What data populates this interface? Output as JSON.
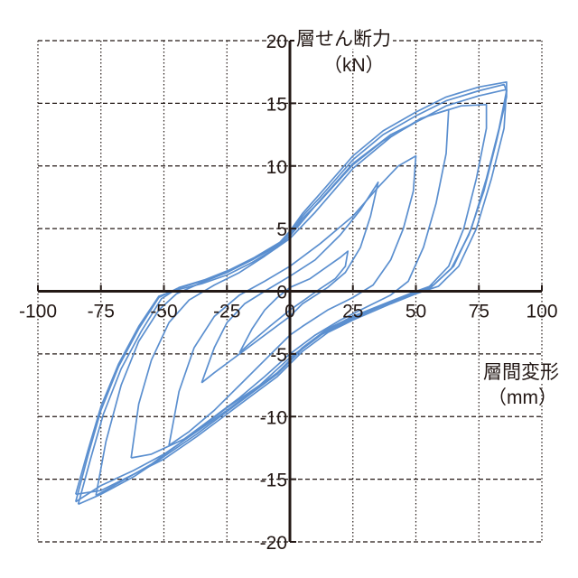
{
  "chart_data": {
    "type": "line",
    "title": "",
    "xlabel": "層間変形",
    "xunit": "（mm）",
    "ylabel": "層せん断力",
    "yunit": "（kN）",
    "xlim": [
      -100,
      100
    ],
    "ylim": [
      -20,
      20
    ],
    "xticks": [
      -100,
      -75,
      -50,
      -25,
      0,
      25,
      50,
      75,
      100
    ],
    "yticks": [
      -20,
      -15,
      -10,
      -5,
      0,
      5,
      10,
      15,
      20
    ],
    "grid": true,
    "line_color": "#5b8fcf",
    "series": [
      {
        "points": [
          [
            -20,
            -4.9
          ],
          [
            -15,
            -3
          ],
          [
            -10,
            -1.5
          ],
          [
            -5,
            -0.5
          ],
          [
            0,
            0.3
          ],
          [
            8,
            1
          ],
          [
            15,
            2
          ],
          [
            20,
            2.7
          ],
          [
            23,
            3.2
          ],
          [
            22,
            2
          ],
          [
            18,
            1
          ],
          [
            12,
            0.2
          ],
          [
            5,
            -0.8
          ],
          [
            0,
            -1.5
          ],
          [
            -8,
            -2.8
          ],
          [
            -15,
            -4
          ],
          [
            -20,
            -4.9
          ]
        ]
      },
      {
        "points": [
          [
            -35,
            -7.3
          ],
          [
            -30,
            -4.5
          ],
          [
            -25,
            -2.5
          ],
          [
            -18,
            -1
          ],
          [
            -10,
            0
          ],
          [
            0,
            1.2
          ],
          [
            10,
            2.5
          ],
          [
            20,
            4.5
          ],
          [
            28,
            6.5
          ],
          [
            35,
            8.7
          ],
          [
            32,
            6
          ],
          [
            28,
            3.5
          ],
          [
            22,
            1.5
          ],
          [
            15,
            0.3
          ],
          [
            5,
            -1
          ],
          [
            0,
            -2
          ],
          [
            -10,
            -3.5
          ],
          [
            -20,
            -5
          ],
          [
            -30,
            -6.5
          ],
          [
            -35,
            -7.3
          ]
        ]
      },
      {
        "points": [
          [
            -48,
            -12.3
          ],
          [
            -44,
            -8
          ],
          [
            -38,
            -4.5
          ],
          [
            -30,
            -2
          ],
          [
            -20,
            -0.3
          ],
          [
            -10,
            0.8
          ],
          [
            0,
            2
          ],
          [
            12,
            3.8
          ],
          [
            25,
            6
          ],
          [
            35,
            8.3
          ],
          [
            43,
            10
          ],
          [
            50,
            10.8
          ],
          [
            49,
            8
          ],
          [
            45,
            5
          ],
          [
            40,
            2.5
          ],
          [
            33,
            0.5
          ],
          [
            25,
            -0.5
          ],
          [
            15,
            -1.5
          ],
          [
            5,
            -2.8
          ],
          [
            0,
            -3.5
          ],
          [
            -10,
            -5.5
          ],
          [
            -20,
            -7.5
          ],
          [
            -30,
            -9.5
          ],
          [
            -40,
            -11.2
          ],
          [
            -48,
            -12.3
          ]
        ]
      },
      {
        "points": [
          [
            -63,
            -13.3
          ],
          [
            -60,
            -9
          ],
          [
            -55,
            -5.5
          ],
          [
            -48,
            -2.5
          ],
          [
            -40,
            -0.7
          ],
          [
            -30,
            0.5
          ],
          [
            -20,
            1.5
          ],
          [
            -10,
            2.8
          ],
          [
            0,
            4.2
          ],
          [
            10,
            6.3
          ],
          [
            25,
            9.8
          ],
          [
            40,
            12.3
          ],
          [
            52,
            13.8
          ],
          [
            63,
            14.5
          ],
          [
            62,
            11
          ],
          [
            58,
            7
          ],
          [
            53,
            3.5
          ],
          [
            47,
            0.8
          ],
          [
            40,
            -0.3
          ],
          [
            30,
            -1.3
          ],
          [
            20,
            -2.3
          ],
          [
            10,
            -3.5
          ],
          [
            0,
            -5
          ],
          [
            -10,
            -6.8
          ],
          [
            -20,
            -8.5
          ],
          [
            -30,
            -10
          ],
          [
            -42,
            -11.8
          ],
          [
            -55,
            -13
          ],
          [
            -63,
            -13.3
          ]
        ]
      },
      {
        "points": [
          [
            -77,
            -16.3
          ],
          [
            -73,
            -12
          ],
          [
            -67,
            -7.5
          ],
          [
            -60,
            -4
          ],
          [
            -52,
            -1.5
          ],
          [
            -45,
            -0.2
          ],
          [
            -35,
            0.7
          ],
          [
            -25,
            1.5
          ],
          [
            -15,
            2.5
          ],
          [
            -5,
            3.6
          ],
          [
            0,
            4.4
          ],
          [
            10,
            6.8
          ],
          [
            25,
            10.2
          ],
          [
            40,
            12.5
          ],
          [
            55,
            14
          ],
          [
            68,
            14.8
          ],
          [
            78,
            14.9
          ],
          [
            78,
            13
          ],
          [
            74,
            9
          ],
          [
            69,
            5
          ],
          [
            63,
            2
          ],
          [
            55,
            0.3
          ],
          [
            48,
            -0.3
          ],
          [
            35,
            -1.3
          ],
          [
            25,
            -2.2
          ],
          [
            12,
            -3.5
          ],
          [
            0,
            -5.3
          ],
          [
            -12,
            -7.5
          ],
          [
            -25,
            -9.3
          ],
          [
            -40,
            -11.6
          ],
          [
            -55,
            -13.8
          ],
          [
            -68,
            -15.3
          ],
          [
            -77,
            -16.3
          ]
        ]
      },
      {
        "points": [
          [
            -85,
            -16.8
          ],
          [
            -80,
            -13
          ],
          [
            -75,
            -9.5
          ],
          [
            -68,
            -6
          ],
          [
            -60,
            -3
          ],
          [
            -52,
            -0.5
          ],
          [
            -45,
            0.2
          ],
          [
            -35,
            0.8
          ],
          [
            -25,
            1.5
          ],
          [
            -15,
            2.5
          ],
          [
            -5,
            3.7
          ],
          [
            0,
            4.6
          ],
          [
            5,
            6
          ],
          [
            12,
            7.5
          ],
          [
            25,
            10.5
          ],
          [
            37,
            12.5
          ],
          [
            50,
            14
          ],
          [
            62,
            15.2
          ],
          [
            75,
            16
          ],
          [
            85,
            16.5
          ],
          [
            86,
            16
          ],
          [
            83,
            13
          ],
          [
            78,
            9
          ],
          [
            72,
            5
          ],
          [
            65,
            2
          ],
          [
            57,
            0.5
          ],
          [
            50,
            0
          ],
          [
            40,
            -0.8
          ],
          [
            25,
            -2
          ],
          [
            15,
            -3
          ],
          [
            5,
            -4.5
          ],
          [
            0,
            -5.5
          ],
          [
            -5,
            -6.5
          ],
          [
            -15,
            -8
          ],
          [
            -25,
            -9.5
          ],
          [
            -37,
            -11.2
          ],
          [
            -50,
            -13
          ],
          [
            -62,
            -14.3
          ],
          [
            -75,
            -15.5
          ],
          [
            -85,
            -16.8
          ]
        ]
      },
      {
        "points": [
          [
            -85,
            -16.2
          ],
          [
            -80,
            -12.6
          ],
          [
            -75,
            -9.2
          ],
          [
            -68,
            -5.8
          ],
          [
            -60,
            -2.8
          ],
          [
            -52,
            -0.4
          ],
          [
            -45,
            0.1
          ],
          [
            -35,
            0.6
          ],
          [
            -25,
            1.3
          ],
          [
            -15,
            2.3
          ],
          [
            -5,
            3.5
          ],
          [
            0,
            4.4
          ],
          [
            5,
            5.8
          ],
          [
            12,
            7.2
          ],
          [
            25,
            10.1
          ],
          [
            37,
            12
          ],
          [
            50,
            13.5
          ],
          [
            62,
            14.8
          ],
          [
            75,
            15.6
          ],
          [
            86,
            16.1
          ],
          [
            85,
            13
          ],
          [
            80,
            9
          ],
          [
            74,
            5
          ],
          [
            67,
            2
          ],
          [
            59,
            0.4
          ],
          [
            50,
            -0.2
          ],
          [
            40,
            -1
          ],
          [
            25,
            -2.3
          ],
          [
            15,
            -3.3
          ],
          [
            5,
            -4.8
          ],
          [
            0,
            -5.8
          ],
          [
            -5,
            -6.8
          ],
          [
            -15,
            -8.3
          ],
          [
            -25,
            -9.8
          ],
          [
            -37,
            -11.6
          ],
          [
            -50,
            -13.4
          ],
          [
            -62,
            -14.6
          ],
          [
            -75,
            -15.9
          ],
          [
            -85,
            -16.2
          ]
        ]
      },
      {
        "points": [
          [
            -84,
            -17
          ],
          [
            -79,
            -13.3
          ],
          [
            -74,
            -9.8
          ],
          [
            -67,
            -6.2
          ],
          [
            -59,
            -3.2
          ],
          [
            -51,
            -0.6
          ],
          [
            -44,
            0.3
          ],
          [
            -34,
            0.9
          ],
          [
            -24,
            1.7
          ],
          [
            -14,
            2.7
          ],
          [
            -4,
            3.9
          ],
          [
            0,
            4.8
          ],
          [
            5,
            6.2
          ],
          [
            12,
            7.8
          ],
          [
            25,
            10.8
          ],
          [
            37,
            12.8
          ],
          [
            50,
            14.3
          ],
          [
            62,
            15.5
          ],
          [
            75,
            16.3
          ],
          [
            86,
            16.7
          ],
          [
            86,
            15.5
          ],
          [
            82,
            12
          ],
          [
            77,
            8
          ],
          [
            71,
            4.5
          ],
          [
            64,
            1.8
          ],
          [
            56,
            0.3
          ],
          [
            50,
            -0.1
          ],
          [
            40,
            -0.9
          ],
          [
            25,
            -2.1
          ],
          [
            15,
            -3.1
          ],
          [
            5,
            -4.6
          ],
          [
            0,
            -5.6
          ],
          [
            -5,
            -6.6
          ],
          [
            -15,
            -8.1
          ],
          [
            -25,
            -9.6
          ],
          [
            -37,
            -11.4
          ],
          [
            -50,
            -13.2
          ],
          [
            -62,
            -14.8
          ],
          [
            -75,
            -16.2
          ],
          [
            -84,
            -17
          ]
        ]
      }
    ]
  }
}
